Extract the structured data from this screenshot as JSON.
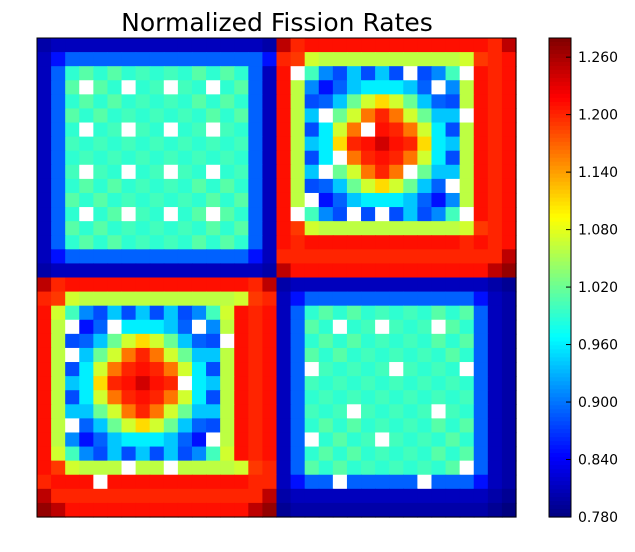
{
  "chart_data": {
    "type": "heatmap",
    "title": "Normalized Fission Rates",
    "xlabel": "",
    "ylabel": "",
    "grid": false,
    "colormap": "jet",
    "blank_color": "#ffffff",
    "vmin": 0.78,
    "vmax": 1.28,
    "colorbar_ticks": [
      "1.260",
      "1.200",
      "1.140",
      "1.080",
      "1.020",
      "0.960",
      "0.900",
      "0.840",
      "0.780"
    ],
    "rows": 34,
    "cols": 34,
    "values": [
      [
        0.8,
        0.81,
        0.81,
        0.81,
        0.81,
        0.81,
        0.81,
        0.81,
        0.81,
        0.81,
        0.81,
        0.81,
        0.81,
        0.81,
        0.81,
        0.81,
        0.8,
        1.25,
        1.2,
        1.21,
        1.21,
        1.21,
        1.21,
        1.21,
        1.21,
        1.21,
        1.21,
        1.21,
        1.21,
        1.21,
        1.21,
        1.21,
        1.2,
        1.25
      ],
      [
        0.81,
        0.85,
        0.89,
        0.89,
        0.89,
        0.89,
        0.89,
        0.89,
        0.89,
        0.89,
        0.89,
        0.89,
        0.89,
        0.89,
        0.89,
        0.89,
        0.85,
        1.2,
        1.19,
        1.07,
        1.06,
        1.06,
        1.06,
        1.06,
        1.06,
        1.06,
        1.06,
        1.06,
        1.06,
        1.06,
        1.07,
        1.19,
        1.2,
        1.21
      ],
      [
        0.81,
        0.89,
        0.99,
        1.01,
        0.99,
        1.01,
        0.99,
        1.0,
        0.99,
        1.0,
        0.99,
        1.01,
        0.99,
        1.01,
        0.99,
        0.89,
        0.81,
        1.21,
        1.07,
        1.0,
        0.91,
        0.88,
        0.94,
        0.88,
        0.94,
        0.88,
        0.94,
        0.88,
        0.91,
        1.0,
        1.07,
        1.21,
        1.2,
        1.21
      ],
      [
        0.81,
        0.89,
        1.01,
        0.99,
        1.01,
        0.99,
        1.0,
        0.99,
        1.0,
        0.99,
        1.0,
        0.99,
        1.01,
        0.99,
        1.01,
        0.89,
        0.81,
        1.21,
        1.06,
        0.91,
        0.85,
        0.89,
        0.94,
        0.96,
        0.96,
        0.96,
        0.94,
        0.89,
        0.85,
        0.91,
        1.06,
        1.21,
        1.2,
        1.21
      ],
      [
        0.81,
        0.89,
        0.99,
        1.01,
        0.99,
        1.01,
        0.99,
        1.0,
        0.99,
        1.0,
        0.99,
        1.01,
        0.99,
        1.01,
        0.99,
        0.89,
        0.81,
        1.21,
        1.06,
        0.88,
        0.89,
        0.94,
        1.02,
        1.07,
        1.11,
        1.07,
        1.02,
        0.94,
        0.89,
        0.88,
        1.06,
        1.21,
        1.2,
        1.21
      ],
      [
        0.81,
        0.89,
        1.01,
        0.99,
        1.01,
        0.99,
        1.0,
        0.99,
        1.0,
        0.99,
        1.0,
        0.99,
        1.01,
        0.99,
        1.01,
        0.89,
        0.81,
        1.21,
        1.06,
        0.94,
        0.94,
        1.02,
        1.07,
        1.16,
        1.2,
        1.16,
        1.07,
        1.02,
        0.94,
        0.94,
        1.06,
        1.21,
        1.2,
        1.21
      ],
      [
        0.81,
        0.89,
        0.99,
        1.0,
        0.99,
        1.0,
        0.99,
        1.0,
        0.99,
        1.0,
        0.99,
        1.0,
        0.99,
        1.0,
        0.99,
        0.89,
        0.81,
        1.21,
        1.06,
        0.88,
        0.96,
        1.07,
        1.16,
        1.2,
        1.21,
        1.2,
        1.16,
        1.07,
        0.96,
        0.88,
        1.06,
        1.21,
        1.2,
        1.21
      ],
      [
        0.81,
        0.89,
        1.0,
        0.99,
        1.0,
        0.99,
        1.0,
        0.99,
        1.0,
        0.99,
        1.0,
        0.99,
        1.0,
        0.99,
        1.0,
        0.89,
        0.81,
        1.21,
        1.06,
        0.94,
        0.96,
        1.11,
        1.2,
        1.21,
        1.24,
        1.21,
        1.2,
        1.11,
        0.96,
        0.94,
        1.06,
        1.21,
        1.2,
        1.21
      ],
      [
        0.81,
        0.89,
        0.99,
        1.0,
        0.99,
        1.0,
        0.99,
        1.0,
        0.99,
        1.0,
        0.99,
        1.0,
        0.99,
        1.0,
        0.99,
        0.89,
        0.81,
        1.21,
        1.06,
        0.88,
        0.96,
        1.07,
        1.16,
        1.2,
        1.21,
        1.2,
        1.16,
        1.07,
        0.96,
        0.88,
        1.06,
        1.21,
        1.2,
        1.21
      ],
      [
        0.81,
        0.89,
        1.0,
        0.99,
        1.0,
        0.99,
        1.0,
        0.99,
        1.0,
        0.99,
        1.0,
        0.99,
        1.0,
        0.99,
        1.0,
        0.89,
        0.81,
        1.21,
        1.06,
        0.94,
        0.94,
        1.02,
        1.07,
        1.16,
        1.2,
        1.16,
        1.07,
        1.02,
        0.94,
        0.94,
        1.06,
        1.21,
        1.2,
        1.21
      ],
      [
        0.81,
        0.89,
        0.99,
        1.01,
        0.99,
        1.01,
        0.99,
        1.0,
        0.99,
        1.0,
        0.99,
        1.01,
        0.99,
        1.01,
        0.99,
        0.89,
        0.81,
        1.21,
        1.06,
        0.88,
        0.89,
        0.94,
        1.02,
        1.07,
        1.11,
        1.07,
        1.02,
        0.94,
        0.89,
        0.88,
        1.06,
        1.21,
        1.2,
        1.21
      ],
      [
        0.81,
        0.89,
        1.01,
        0.99,
        1.01,
        0.99,
        1.0,
        0.99,
        1.0,
        0.99,
        1.0,
        0.99,
        1.01,
        0.99,
        1.01,
        0.89,
        0.81,
        1.21,
        1.06,
        0.91,
        0.85,
        0.89,
        0.94,
        0.96,
        0.96,
        0.96,
        0.94,
        0.89,
        0.85,
        0.91,
        1.06,
        1.21,
        1.2,
        1.21
      ],
      [
        0.81,
        0.89,
        0.99,
        1.01,
        0.99,
        1.01,
        0.99,
        1.0,
        0.99,
        1.0,
        0.99,
        1.01,
        0.99,
        1.01,
        0.99,
        0.89,
        0.81,
        1.21,
        1.07,
        1.0,
        0.91,
        0.88,
        0.94,
        0.88,
        0.94,
        0.88,
        0.94,
        0.88,
        0.91,
        1.0,
        1.07,
        1.21,
        1.2,
        1.21
      ],
      [
        0.81,
        0.89,
        1.01,
        0.99,
        1.01,
        0.99,
        1.0,
        0.99,
        1.0,
        0.99,
        1.0,
        0.99,
        1.01,
        0.99,
        1.01,
        0.89,
        0.81,
        1.21,
        1.19,
        1.07,
        1.06,
        1.06,
        1.06,
        1.06,
        1.06,
        1.06,
        1.06,
        1.06,
        1.06,
        1.06,
        1.07,
        1.19,
        1.2,
        1.21
      ],
      [
        0.81,
        0.89,
        0.99,
        1.01,
        0.99,
        1.01,
        0.99,
        1.0,
        0.99,
        1.0,
        0.99,
        1.01,
        0.99,
        1.01,
        0.99,
        0.89,
        0.81,
        1.21,
        1.2,
        1.21,
        1.21,
        1.21,
        1.21,
        1.21,
        1.21,
        1.21,
        1.21,
        1.21,
        1.21,
        1.21,
        1.2,
        1.21,
        1.2,
        1.21
      ],
      [
        0.81,
        0.85,
        0.89,
        0.89,
        0.89,
        0.89,
        0.89,
        0.89,
        0.89,
        0.89,
        0.89,
        0.89,
        0.89,
        0.89,
        0.89,
        0.85,
        0.81,
        1.2,
        1.2,
        1.2,
        1.2,
        1.2,
        1.2,
        1.2,
        1.2,
        1.2,
        1.2,
        1.2,
        1.2,
        1.2,
        1.2,
        1.2,
        1.2,
        1.25
      ],
      [
        0.8,
        0.81,
        0.81,
        0.81,
        0.81,
        0.81,
        0.81,
        0.81,
        0.81,
        0.81,
        0.81,
        0.81,
        0.81,
        0.81,
        0.81,
        0.81,
        0.8,
        1.25,
        1.21,
        1.21,
        1.21,
        1.21,
        1.21,
        1.21,
        1.21,
        1.21,
        1.21,
        1.21,
        1.21,
        1.21,
        1.21,
        1.21,
        1.25,
        1.27
      ],
      [
        1.25,
        1.2,
        1.21,
        1.21,
        1.21,
        1.21,
        1.21,
        1.21,
        1.21,
        1.21,
        1.21,
        1.21,
        1.21,
        1.21,
        1.21,
        1.2,
        1.25,
        0.8,
        0.81,
        0.81,
        0.81,
        0.81,
        0.81,
        0.81,
        0.81,
        0.81,
        0.81,
        0.81,
        0.81,
        0.81,
        0.81,
        0.81,
        0.8,
        0.79
      ],
      [
        1.2,
        1.19,
        1.07,
        1.06,
        1.06,
        1.06,
        1.06,
        1.06,
        1.06,
        1.06,
        1.06,
        1.06,
        1.06,
        1.06,
        1.07,
        1.19,
        1.2,
        0.81,
        0.85,
        0.89,
        0.89,
        0.89,
        0.89,
        0.89,
        0.89,
        0.89,
        0.89,
        0.89,
        0.89,
        0.89,
        0.89,
        0.85,
        0.81,
        0.8
      ],
      [
        1.21,
        1.07,
        1.0,
        0.91,
        0.88,
        0.94,
        0.88,
        0.94,
        0.88,
        0.94,
        0.88,
        0.91,
        1.0,
        1.07,
        1.21,
        1.2,
        1.21,
        0.81,
        0.89,
        0.99,
        1.01,
        0.99,
        1.01,
        0.99,
        1.0,
        0.99,
        1.0,
        0.99,
        1.01,
        0.99,
        1.01,
        0.89,
        0.81,
        0.8
      ],
      [
        1.21,
        1.06,
        0.91,
        0.85,
        0.89,
        0.94,
        0.96,
        0.96,
        0.96,
        0.94,
        0.89,
        0.85,
        0.91,
        1.06,
        1.21,
        1.2,
        1.21,
        0.81,
        0.89,
        1.01,
        0.99,
        1.01,
        0.99,
        1.0,
        0.99,
        1.0,
        0.99,
        1.0,
        0.99,
        1.01,
        0.99,
        0.89,
        0.81,
        0.8
      ],
      [
        1.21,
        1.06,
        0.88,
        0.89,
        0.94,
        1.02,
        1.07,
        1.11,
        1.07,
        1.02,
        0.94,
        0.89,
        0.88,
        1.06,
        1.21,
        1.2,
        1.21,
        0.81,
        0.89,
        0.99,
        1.01,
        0.99,
        1.01,
        0.99,
        1.0,
        0.99,
        1.0,
        0.99,
        1.01,
        0.99,
        1.01,
        0.89,
        0.81,
        0.8
      ],
      [
        1.21,
        1.06,
        0.94,
        0.94,
        1.02,
        1.07,
        1.16,
        1.2,
        1.16,
        1.07,
        1.02,
        0.94,
        0.94,
        1.06,
        1.21,
        1.2,
        1.21,
        0.81,
        0.89,
        1.01,
        0.99,
        1.01,
        0.99,
        1.0,
        0.99,
        1.0,
        0.99,
        1.0,
        0.99,
        1.01,
        0.99,
        0.89,
        0.81,
        0.8
      ],
      [
        1.21,
        1.06,
        0.88,
        0.96,
        1.07,
        1.16,
        1.2,
        1.21,
        1.2,
        1.16,
        1.07,
        0.96,
        0.88,
        1.06,
        1.21,
        1.2,
        1.21,
        0.81,
        0.89,
        0.99,
        1.0,
        0.99,
        1.0,
        0.99,
        1.0,
        0.99,
        1.0,
        0.99,
        1.0,
        0.99,
        1.0,
        0.89,
        0.81,
        0.8
      ],
      [
        1.21,
        1.06,
        0.94,
        0.96,
        1.11,
        1.2,
        1.21,
        1.24,
        1.21,
        1.2,
        1.11,
        0.96,
        0.94,
        1.06,
        1.21,
        1.2,
        1.21,
        0.81,
        0.89,
        1.0,
        0.99,
        1.0,
        0.99,
        1.0,
        0.99,
        1.0,
        0.99,
        1.0,
        0.99,
        1.0,
        0.99,
        0.89,
        0.81,
        0.8
      ],
      [
        1.21,
        1.06,
        0.88,
        0.96,
        1.07,
        1.16,
        1.2,
        1.21,
        1.2,
        1.16,
        1.07,
        0.96,
        0.88,
        1.06,
        1.21,
        1.2,
        1.21,
        0.81,
        0.89,
        0.99,
        1.0,
        0.99,
        1.0,
        0.99,
        1.0,
        0.99,
        1.0,
        0.99,
        1.0,
        0.99,
        1.0,
        0.89,
        0.81,
        0.8
      ],
      [
        1.21,
        1.06,
        0.94,
        0.94,
        1.02,
        1.07,
        1.16,
        1.2,
        1.16,
        1.07,
        1.02,
        0.94,
        0.94,
        1.06,
        1.21,
        1.2,
        1.21,
        0.81,
        0.89,
        1.0,
        0.99,
        1.0,
        0.99,
        1.0,
        0.99,
        1.0,
        0.99,
        1.0,
        0.99,
        1.0,
        0.99,
        0.89,
        0.81,
        0.8
      ],
      [
        1.21,
        1.06,
        0.88,
        0.89,
        0.94,
        1.02,
        1.07,
        1.11,
        1.07,
        1.02,
        0.94,
        0.89,
        0.88,
        1.06,
        1.21,
        1.2,
        1.21,
        0.81,
        0.89,
        0.99,
        1.01,
        0.99,
        1.01,
        0.99,
        1.0,
        0.99,
        1.0,
        0.99,
        1.01,
        0.99,
        1.01,
        0.89,
        0.81,
        0.8
      ],
      [
        1.21,
        1.06,
        0.91,
        0.85,
        0.89,
        0.94,
        0.96,
        0.96,
        0.96,
        0.94,
        0.89,
        0.85,
        0.91,
        1.06,
        1.21,
        1.2,
        1.21,
        0.81,
        0.89,
        1.01,
        0.99,
        1.01,
        0.99,
        1.0,
        0.99,
        1.0,
        0.99,
        1.0,
        0.99,
        1.01,
        0.99,
        0.89,
        0.81,
        0.8
      ],
      [
        1.21,
        1.07,
        1.0,
        0.91,
        0.88,
        0.94,
        0.88,
        0.94,
        0.88,
        0.94,
        0.88,
        0.91,
        1.0,
        1.07,
        1.21,
        1.2,
        1.21,
        0.81,
        0.89,
        0.99,
        1.01,
        0.99,
        1.01,
        0.99,
        1.0,
        0.99,
        1.0,
        0.99,
        1.01,
        0.99,
        1.01,
        0.89,
        0.81,
        0.8
      ],
      [
        1.21,
        1.19,
        1.07,
        1.06,
        1.06,
        1.06,
        1.06,
        1.06,
        1.06,
        1.06,
        1.06,
        1.06,
        1.06,
        1.06,
        1.07,
        1.19,
        1.2,
        0.81,
        0.89,
        1.01,
        0.99,
        1.01,
        0.99,
        1.0,
        0.99,
        1.0,
        0.99,
        1.0,
        0.99,
        1.01,
        0.99,
        0.89,
        0.81,
        0.8
      ],
      [
        1.2,
        1.21,
        1.21,
        1.21,
        1.21,
        1.21,
        1.21,
        1.21,
        1.21,
        1.21,
        1.21,
        1.21,
        1.21,
        1.21,
        1.21,
        1.2,
        1.2,
        0.81,
        0.85,
        0.89,
        0.89,
        0.89,
        0.89,
        0.89,
        0.89,
        0.89,
        0.89,
        0.89,
        0.89,
        0.89,
        0.89,
        0.85,
        0.81,
        0.8
      ],
      [
        1.25,
        1.2,
        1.2,
        1.2,
        1.2,
        1.2,
        1.2,
        1.2,
        1.2,
        1.2,
        1.2,
        1.2,
        1.2,
        1.2,
        1.2,
        1.2,
        1.25,
        0.8,
        0.81,
        0.81,
        0.81,
        0.81,
        0.81,
        0.81,
        0.81,
        0.81,
        0.81,
        0.81,
        0.81,
        0.81,
        0.81,
        0.81,
        0.8,
        0.79
      ],
      [
        1.27,
        1.25,
        1.21,
        1.21,
        1.21,
        1.21,
        1.21,
        1.21,
        1.21,
        1.21,
        1.21,
        1.21,
        1.21,
        1.21,
        1.21,
        1.25,
        1.27,
        0.79,
        0.8,
        0.8,
        0.8,
        0.8,
        0.8,
        0.8,
        0.8,
        0.8,
        0.8,
        0.8,
        0.8,
        0.8,
        0.8,
        0.8,
        0.79,
        0.78
      ]
    ],
    "blank_cells": [
      [
        3,
        3
      ],
      [
        3,
        6
      ],
      [
        3,
        9
      ],
      [
        3,
        12
      ],
      [
        6,
        3
      ],
      [
        6,
        6
      ],
      [
        6,
        9
      ],
      [
        6,
        12
      ],
      [
        9,
        3
      ],
      [
        9,
        6
      ],
      [
        9,
        9
      ],
      [
        9,
        12
      ],
      [
        12,
        3
      ],
      [
        12,
        6
      ],
      [
        12,
        9
      ],
      [
        12,
        12
      ],
      [
        2,
        18
      ],
      [
        2,
        26
      ],
      [
        2,
        30
      ],
      [
        5,
        20
      ],
      [
        5,
        30
      ],
      [
        9,
        20
      ],
      [
        9,
        26
      ],
      [
        12,
        18
      ],
      [
        12,
        22
      ],
      [
        12,
        24
      ],
      [
        12,
        30
      ],
      [
        3,
        28
      ],
      [
        6,
        23
      ],
      [
        8,
        21
      ],
      [
        10,
        29
      ],
      [
        11,
        19
      ],
      [
        20,
        2
      ],
      [
        20,
        5
      ],
      [
        20,
        11
      ],
      [
        22,
        2
      ],
      [
        24,
        10
      ],
      [
        27,
        2
      ],
      [
        28,
        12
      ],
      [
        30,
        6
      ],
      [
        30,
        9
      ],
      [
        31,
        4
      ],
      [
        21,
        13
      ],
      [
        20,
        21
      ],
      [
        20,
        24
      ],
      [
        20,
        28
      ],
      [
        23,
        19
      ],
      [
        23,
        25
      ],
      [
        23,
        30
      ],
      [
        26,
        22
      ],
      [
        26,
        28
      ],
      [
        28,
        19
      ],
      [
        28,
        24
      ],
      [
        31,
        21
      ],
      [
        31,
        27
      ],
      [
        30,
        30
      ]
    ]
  }
}
